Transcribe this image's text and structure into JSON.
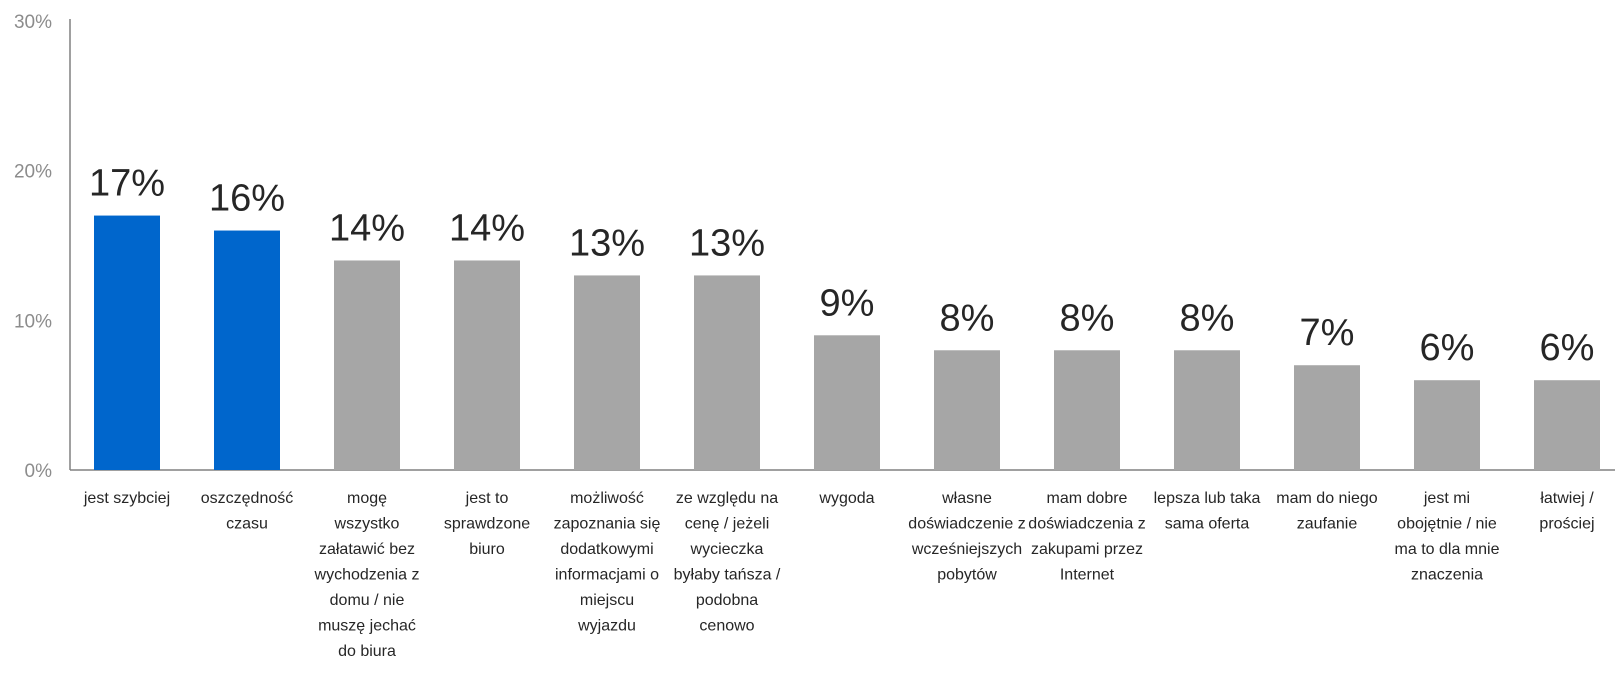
{
  "chart_data": {
    "type": "bar",
    "title": "",
    "xlabel": "",
    "ylabel": "",
    "ylim": [
      0,
      30
    ],
    "yticks": [
      0,
      10,
      20,
      30
    ],
    "ytick_labels": [
      "0%",
      "10%",
      "20%",
      "30%"
    ],
    "grid": false,
    "legend": "none",
    "categories": [
      [
        "jest szybciej"
      ],
      [
        "oszczędność",
        "czasu"
      ],
      [
        "mogę",
        "wszystko",
        "załatawić bez",
        "wychodzenia z",
        "domu / nie",
        "muszę jechać",
        "do biura"
      ],
      [
        "jest to",
        "sprawdzone",
        "biuro"
      ],
      [
        "możliwość",
        "zapoznania się",
        "dodatkowymi",
        "informacjami o",
        "miejscu",
        "wyjazdu"
      ],
      [
        "ze względu na",
        "cenę / jeżeli",
        "wycieczka",
        "byłaby tańsza /",
        "podobna",
        "cenowo"
      ],
      [
        "wygoda"
      ],
      [
        "własne",
        "doświadczenie z",
        "wcześniejszych",
        "pobytów"
      ],
      [
        "mam dobre",
        "doświadczenia z",
        "zakupami przez",
        "Internet"
      ],
      [
        "lepsza lub taka",
        "sama oferta"
      ],
      [
        "mam do niego",
        "zaufanie"
      ],
      [
        "jest mi",
        "obojętnie / nie",
        "ma to dla mnie",
        "znaczenia"
      ],
      [
        "łatwiej /",
        "prościej"
      ]
    ],
    "values": [
      17,
      16,
      14,
      14,
      13,
      13,
      9,
      8,
      8,
      8,
      7,
      6,
      6
    ],
    "data_labels": [
      "17%",
      "16%",
      "14%",
      "14%",
      "13%",
      "13%",
      "9%",
      "8%",
      "8%",
      "8%",
      "7%",
      "6%",
      "6%"
    ],
    "colors": [
      "#0066cc",
      "#0066cc",
      "#a6a6a6",
      "#a6a6a6",
      "#a6a6a6",
      "#a6a6a6",
      "#a6a6a6",
      "#a6a6a6",
      "#a6a6a6",
      "#a6a6a6",
      "#a6a6a6",
      "#a6a6a6",
      "#a6a6a6"
    ],
    "axis_color": "#808080"
  }
}
